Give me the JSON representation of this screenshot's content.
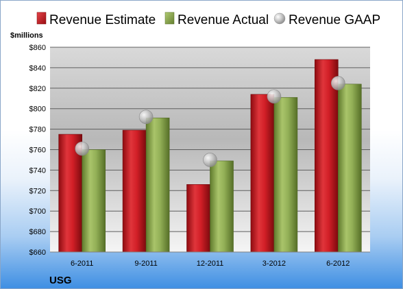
{
  "chart_data": {
    "type": "bar",
    "title": "",
    "ylabel": "$millions",
    "company": "USG",
    "categories": [
      "6-2011",
      "9-2011",
      "12-2011",
      "3-2012",
      "6-2012"
    ],
    "series": [
      {
        "name": "Revenue Estimate",
        "kind": "bar",
        "color": "#cc1a22",
        "values": [
          775,
          779,
          726,
          814,
          848
        ]
      },
      {
        "name": "Revenue Actual",
        "kind": "bar",
        "color": "#8fac52",
        "values": [
          760,
          791,
          749,
          811,
          824
        ]
      },
      {
        "name": "Revenue GAAP",
        "kind": "marker",
        "color": "#b8b8b8",
        "values": [
          761,
          792,
          750,
          812,
          825
        ]
      }
    ],
    "ylim": [
      660,
      860
    ],
    "ytick_step": 20,
    "ytick_prefix": "$",
    "grid": true,
    "legend_position": "top"
  }
}
